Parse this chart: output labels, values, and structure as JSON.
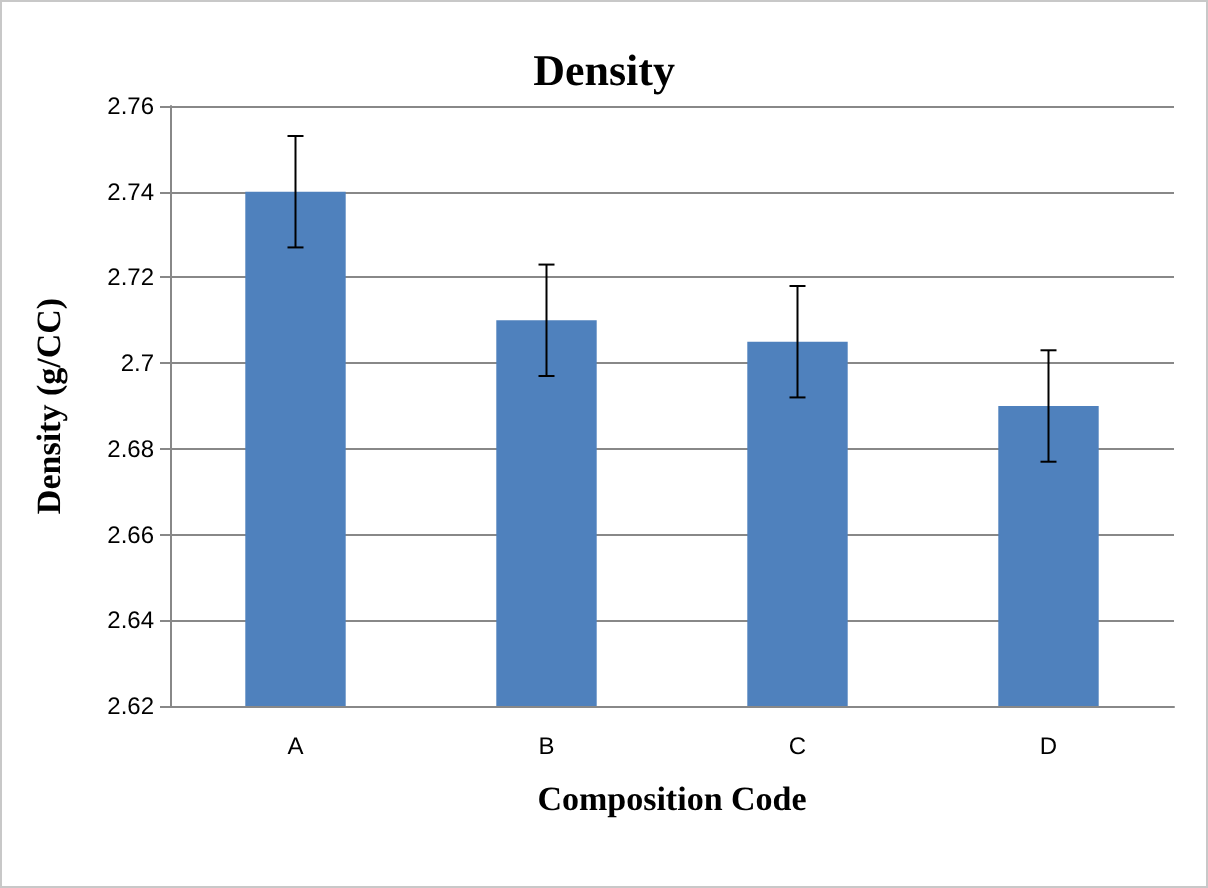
{
  "chart_data": {
    "type": "bar",
    "title": "Density",
    "xlabel": "Composition Code",
    "ylabel": "Density (g/CC)",
    "categories": [
      "A",
      "B",
      "C",
      "D"
    ],
    "values": [
      2.74,
      2.71,
      2.705,
      2.69
    ],
    "errors": [
      0.013,
      0.013,
      0.013,
      0.013
    ],
    "color": "#4f81bd",
    "ylim": [
      2.62,
      2.76
    ],
    "yticks": [
      2.62,
      2.64,
      2.66,
      2.68,
      2.7,
      2.72,
      2.74,
      2.76
    ],
    "grid": "y"
  }
}
